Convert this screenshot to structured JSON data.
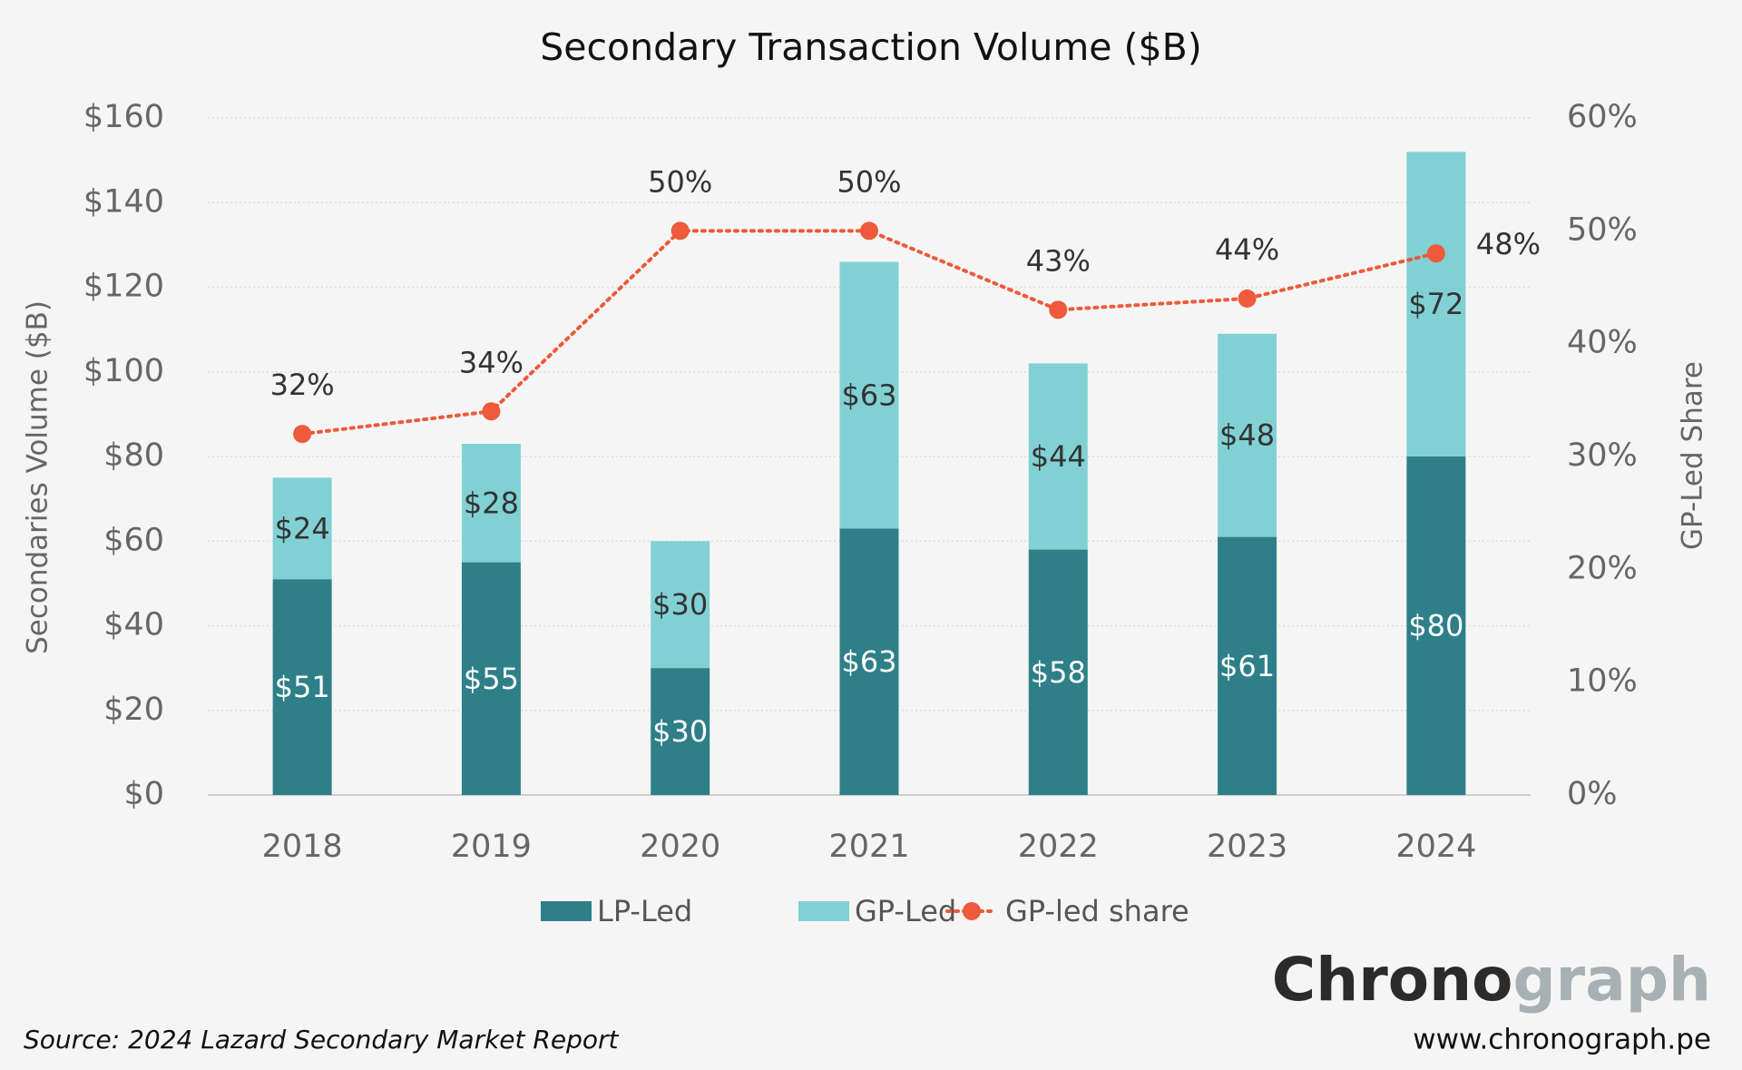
{
  "chart_data": {
    "type": "bar",
    "stacked": true,
    "title": "Secondary Transaction Volume ($B)",
    "y_label": "Secondaries Volume ($B)",
    "y2_label": "GP-Led Share",
    "categories": [
      "2018",
      "2019",
      "2020",
      "2021",
      "2022",
      "2023",
      "2024"
    ],
    "series": [
      {
        "name": "LP-Led",
        "color": "#2e7f88",
        "values": [
          51,
          55,
          30,
          63,
          58,
          61,
          80
        ],
        "value_labels": [
          "$51",
          "$55",
          "$30",
          "$63",
          "$58",
          "$61",
          "$80"
        ]
      },
      {
        "name": "GP-Led",
        "color": "#81d1d4",
        "values": [
          24,
          28,
          30,
          63,
          44,
          48,
          72
        ],
        "value_labels": [
          "$24",
          "$28",
          "$30",
          "$63",
          "$44",
          "$48",
          "$72"
        ]
      },
      {
        "name": "GP-led share",
        "type": "line",
        "axis": "y2",
        "color": "#ee5a3a",
        "values": [
          32,
          34,
          50,
          50,
          43,
          44,
          48
        ],
        "value_labels": [
          "32%",
          "34%",
          "50%",
          "50%",
          "43%",
          "44%",
          "48%"
        ]
      }
    ],
    "ylim": [
      0,
      160
    ],
    "yticks": [
      {
        "value": 0,
        "label": "$0"
      },
      {
        "value": 20,
        "label": "$20"
      },
      {
        "value": 40,
        "label": "$40"
      },
      {
        "value": 60,
        "label": "$60"
      },
      {
        "value": 80,
        "label": "$80"
      },
      {
        "value": 100,
        "label": "$100"
      },
      {
        "value": 120,
        "label": "$120"
      },
      {
        "value": 140,
        "label": "$140"
      },
      {
        "value": 160,
        "label": "$160"
      }
    ],
    "y2lim": [
      0,
      60
    ],
    "y2ticks": [
      {
        "value": 0,
        "label": "0%"
      },
      {
        "value": 10,
        "label": "10%"
      },
      {
        "value": 20,
        "label": "20%"
      },
      {
        "value": 30,
        "label": "30%"
      },
      {
        "value": 40,
        "label": "40%"
      },
      {
        "value": 50,
        "label": "50%"
      },
      {
        "value": 60,
        "label": "60%"
      }
    ],
    "grid": true,
    "legend": "bottom",
    "source": "Source: 2024 Lazard Secondary Market Report"
  },
  "brand": {
    "name_dark": "Chrono",
    "name_light": "graph",
    "url": "www.chronograph.pe"
  }
}
